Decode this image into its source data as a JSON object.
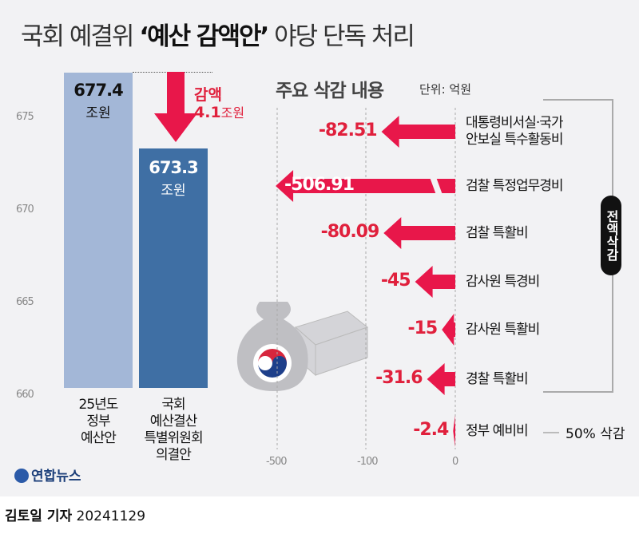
{
  "title": {
    "normal1": "국회 예결위 ",
    "bold": "‘예산 감액안’",
    "normal2": " 야당 단독 처리"
  },
  "left_chart": {
    "yticks": [
      "675",
      "670",
      "665",
      "660"
    ],
    "bars": [
      {
        "value": 677.4,
        "value_label": "677.4",
        "unit": "조원",
        "category": [
          "25년도",
          "정부",
          "예산안"
        ],
        "color": "#a3b7d7"
      },
      {
        "value": 673.3,
        "value_label": "673.3",
        "unit": "조원",
        "category": [
          "국회",
          "예산결산",
          "특별위원회",
          "의결안"
        ],
        "color": "#3f6fa4"
      }
    ],
    "reduction": {
      "label": "감액",
      "amount": "4.1",
      "unit": "조원"
    }
  },
  "chart_data": {
    "type": "bar",
    "title": "주요 삭감 내용",
    "unit": "단위: 억원",
    "categories": [
      [
        "대통령비서실·국가",
        "안보실 특수활동비"
      ],
      [
        "검찰 특정업무경비"
      ],
      [
        "검찰 특활비"
      ],
      [
        "감사원 특경비"
      ],
      [
        "감사원 특활비"
      ],
      [
        "경찰 특활비"
      ],
      [
        "정부 예비비"
      ]
    ],
    "values": [
      -82.51,
      -506.91,
      -80.09,
      -45,
      -15,
      -31.6,
      -2.4
    ],
    "value_labels": [
      "-82.51",
      "-506.91",
      "-80.09",
      "-45",
      "-15",
      "-31.6",
      "-2.4"
    ],
    "xticks": [
      "-500",
      "-100",
      "0"
    ],
    "bracket_label": "전액삭감",
    "note": "50% 삭감",
    "color": "#e8174a"
  },
  "footer": {
    "logo": "연합뉴스",
    "byline": "김토일 기자",
    "date": "20241129"
  }
}
